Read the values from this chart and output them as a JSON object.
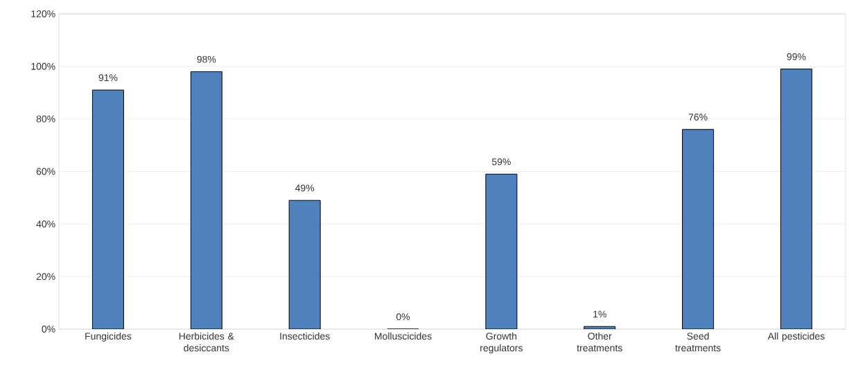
{
  "chart_data": {
    "type": "bar",
    "categories": [
      "Fungicides",
      "Herbicides & desiccants",
      "Insecticides",
      "Molluscicides",
      "Growth regulators",
      "Other treatments",
      "Seed treatments",
      "All pesticides"
    ],
    "values": [
      91,
      98,
      49,
      0,
      59,
      1,
      76,
      99
    ],
    "value_labels": [
      "91%",
      "98%",
      "49%",
      "0%",
      "59%",
      "1%",
      "76%",
      "99%"
    ],
    "color": "#4f81bd",
    "ylim": [
      0,
      120
    ],
    "yticks": [
      {
        "value": 0,
        "label": "0%"
      },
      {
        "value": 20,
        "label": "20%"
      },
      {
        "value": 40,
        "label": "40%"
      },
      {
        "value": 60,
        "label": "60%"
      },
      {
        "value": 80,
        "label": "80%"
      },
      {
        "value": 100,
        "label": "100%"
      },
      {
        "value": 120,
        "label": "120%"
      }
    ],
    "grid": "y"
  }
}
